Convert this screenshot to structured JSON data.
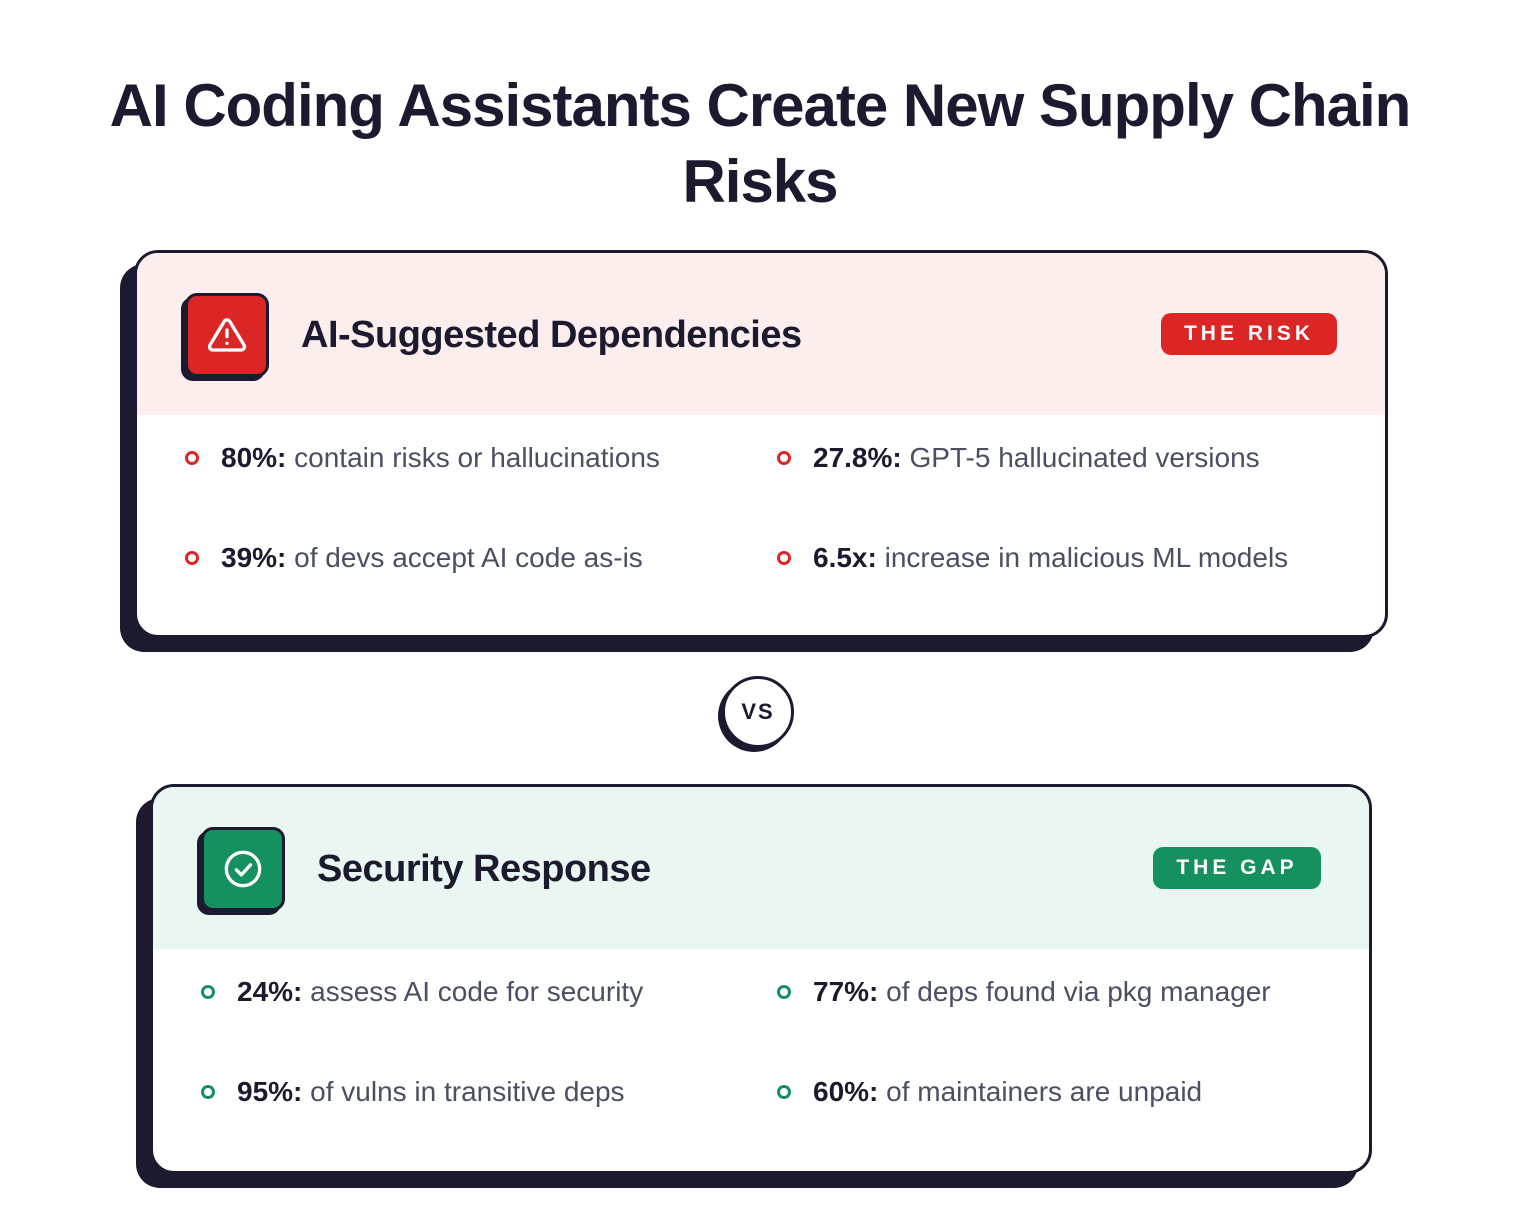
{
  "title": "AI Coding Assistants Create New Supply Chain Risks",
  "risk_card": {
    "title": "AI-Suggested Dependencies",
    "badge": "THE RISK",
    "icon": "warning-triangle-icon",
    "accent": "#dc2626",
    "header_bg": "#fdeeee",
    "stats": [
      {
        "value": "80%:",
        "text": " contain risks or hallucinations"
      },
      {
        "value": "27.8%:",
        "text": " GPT-5 hallucinated versions"
      },
      {
        "value": "39%:",
        "text": " of devs accept AI code as-is"
      },
      {
        "value": "6.5x:",
        "text": " increase in malicious ML models"
      }
    ]
  },
  "vs_label": "VS",
  "gap_card": {
    "title": "Security Response",
    "badge": "THE GAP",
    "icon": "check-circle-icon",
    "accent": "#15905f",
    "header_bg": "#eaf6f1",
    "stats": [
      {
        "value": "24%:",
        "text": " assess AI code for security"
      },
      {
        "value": "77%:",
        "text": " of deps found via pkg manager"
      },
      {
        "value": "95%:",
        "text": " of vulns in transitive deps"
      },
      {
        "value": "60%:",
        "text": " of maintainers are unpaid"
      }
    ]
  }
}
